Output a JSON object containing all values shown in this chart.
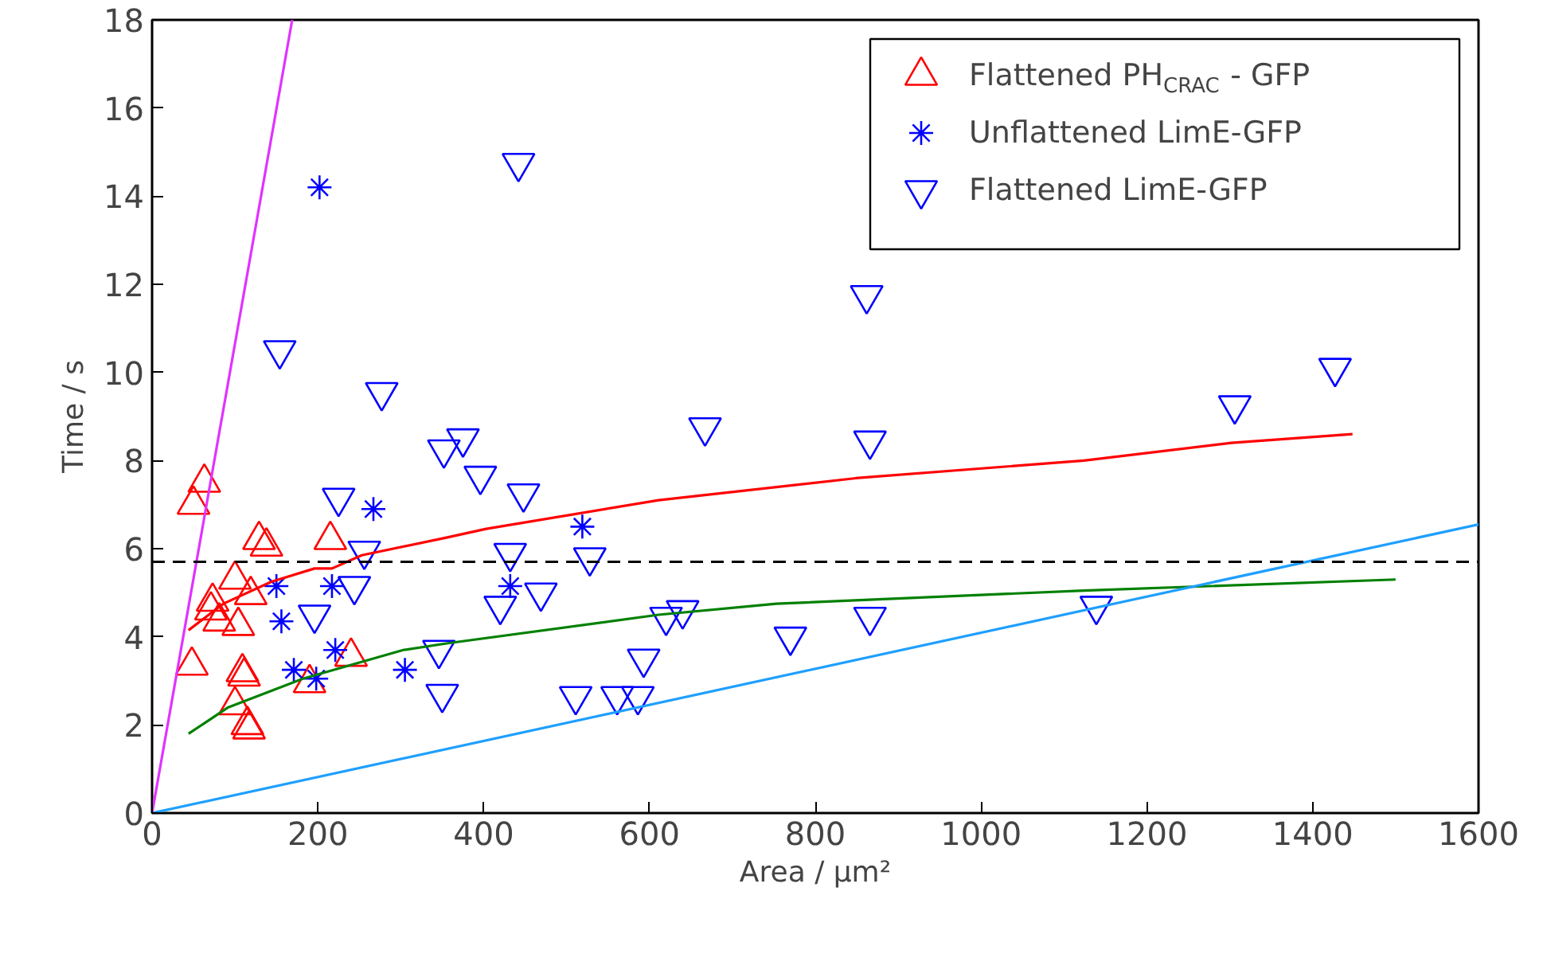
{
  "chart_data": {
    "type": "scatter",
    "xlabel": "Area / μm²",
    "ylabel": "Time / s",
    "xlim": [
      0,
      1600
    ],
    "ylim": [
      0,
      18
    ],
    "xticks": [
      0,
      200,
      400,
      600,
      800,
      1000,
      1200,
      1400,
      1600
    ],
    "yticks": [
      0,
      2,
      4,
      6,
      8,
      10,
      12,
      14,
      16,
      18
    ],
    "grid": false,
    "legend": "top right",
    "ref_lines": [
      {
        "axis": "y",
        "value": 5.7,
        "color": "#000000",
        "line_style": "dashed"
      }
    ],
    "series": [
      {
        "name": "Flattened PH$_{CRAC}$ - GFP",
        "marker": "triangle",
        "color": "#ff0000",
        "x": [
          50,
          63,
          73,
          71,
          100,
          119,
          81,
          104,
          48,
          109,
          111,
          100,
          115,
          117,
          129,
          138,
          215,
          190,
          240
        ],
        "values": [
          7.0,
          7.5,
          4.8,
          4.6,
          5.3,
          4.95,
          4.35,
          4.25,
          3.35,
          3.2,
          3.1,
          2.45,
          2.0,
          1.9,
          6.2,
          6.05,
          6.2,
          2.95,
          3.55
        ]
      },
      {
        "name": "Unflattened LimE-GFP",
        "marker": "cross",
        "color": "#0000ff",
        "x": [
          202,
          267,
          150,
          217,
          156,
          221,
          171,
          198,
          305,
          519,
          432
        ],
        "values": [
          14.2,
          6.9,
          5.15,
          5.15,
          4.35,
          3.7,
          3.25,
          3.05,
          3.25,
          6.5,
          5.15
        ]
      },
      {
        "name": "Flattened LimE-GFP",
        "color": "#0000ff",
        "x": [
          154,
          277,
          442,
          352,
          375,
          396,
          448,
          225,
          256,
          432,
          528,
          469,
          420,
          244,
          196,
          346,
          350,
          511,
          561,
          586,
          593,
          620,
          640,
          667,
          770,
          862,
          866,
          866,
          1139,
          1306,
          1427
        ],
        "values": [
          10.5,
          9.55,
          14.75,
          8.25,
          8.5,
          7.65,
          7.25,
          7.15,
          5.95,
          5.9,
          5.8,
          5.0,
          4.7,
          5.15,
          4.5,
          3.7,
          2.7,
          2.65,
          2.65,
          2.65,
          3.5,
          4.45,
          4.6,
          8.75,
          4.0,
          11.75,
          8.45,
          4.45,
          4.7,
          9.25,
          10.1
        ]
      },
      {
        "type": "line",
        "color": "#ff0000",
        "x": [
          44,
          86,
          144,
          196,
          217,
          253,
          355,
          403,
          611,
          849,
          1124,
          1302,
          1448
        ],
        "values": [
          4.15,
          4.75,
          5.25,
          5.55,
          5.55,
          5.85,
          6.25,
          6.45,
          7.1,
          7.6,
          8.0,
          8.4,
          8.6
        ]
      },
      {
        "type": "line",
        "color": "#008000",
        "x": [
          44,
          92,
          182,
          303,
          355,
          611,
          753,
          1124,
          1500
        ],
        "values": [
          1.8,
          2.4,
          3.05,
          3.7,
          3.85,
          4.5,
          4.75,
          5.05,
          5.3
        ]
      },
      {
        "type": "line",
        "color": "#1e9fff",
        "x": [
          0,
          1600
        ],
        "values": [
          0,
          6.55
        ]
      },
      {
        "type": "line",
        "color": "#e033ff",
        "x": [
          0,
          169
        ],
        "values": [
          0,
          18
        ]
      }
    ]
  }
}
